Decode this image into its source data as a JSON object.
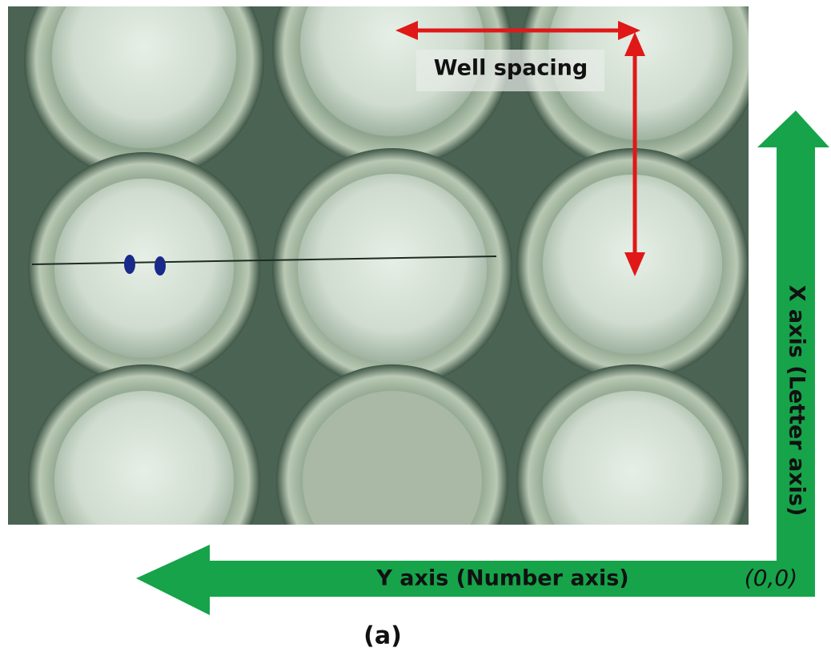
{
  "annotations": {
    "well_spacing": "Well spacing",
    "x_axis": "X axis (Letter axis)",
    "y_axis": "Y axis (Number axis)",
    "origin": "(0,0)"
  },
  "caption": "(a)"
}
